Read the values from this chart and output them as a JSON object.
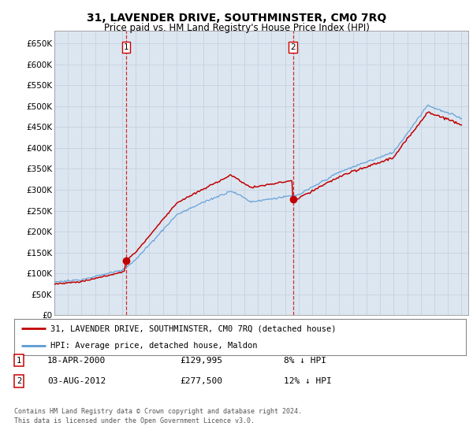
{
  "title": "31, LAVENDER DRIVE, SOUTHMINSTER, CM0 7RQ",
  "subtitle": "Price paid vs. HM Land Registry's House Price Index (HPI)",
  "ylim": [
    0,
    680000
  ],
  "yticks": [
    0,
    50000,
    100000,
    150000,
    200000,
    250000,
    300000,
    350000,
    400000,
    450000,
    500000,
    550000,
    600000,
    650000
  ],
  "ytick_labels": [
    "£0",
    "£50K",
    "£100K",
    "£150K",
    "£200K",
    "£250K",
    "£300K",
    "£350K",
    "£400K",
    "£450K",
    "£500K",
    "£550K",
    "£600K",
    "£650K"
  ],
  "hpi_color": "#5b9bd5",
  "price_color": "#c00000",
  "marker_color": "#c00000",
  "grid_color": "#c8d4e3",
  "chart_bg_color": "#dce6f0",
  "background_color": "#ffffff",
  "legend_label_price": "31, LAVENDER DRIVE, SOUTHMINSTER, CM0 7RQ (detached house)",
  "legend_label_hpi": "HPI: Average price, detached house, Maldon",
  "annotation1_date": "18-APR-2000",
  "annotation1_price": "£129,995",
  "annotation1_pct": "8% ↓ HPI",
  "annotation2_date": "03-AUG-2012",
  "annotation2_price": "£277,500",
  "annotation2_pct": "12% ↓ HPI",
  "footer": "Contains HM Land Registry data © Crown copyright and database right 2024.\nThis data is licensed under the Open Government Licence v3.0.",
  "sale1_x": 2000.29,
  "sale1_y": 129995,
  "sale2_x": 2012.59,
  "sale2_y": 277500,
  "vline1_x": 2000.29,
  "vline2_x": 2012.59,
  "xlim_start": 1995.0,
  "xlim_end": 2025.5
}
